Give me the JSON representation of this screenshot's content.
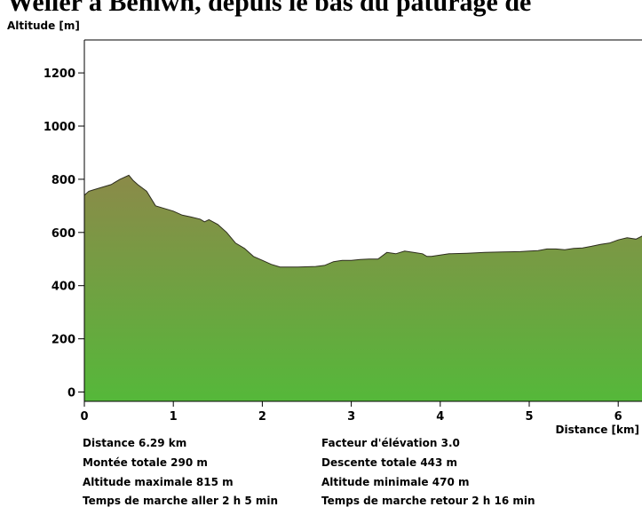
{
  "chart_data": {
    "type": "area",
    "title": "Weiler à Benlwh, depuis le bas du pâturage de",
    "xlabel": "Distance [km]",
    "ylabel": "Altitude [m]",
    "xlim": [
      0,
      6.29
    ],
    "ylim": [
      -30,
      1300
    ],
    "x_ticks": [
      0,
      1,
      2,
      3,
      4,
      5,
      6
    ],
    "y_ticks": [
      0,
      200,
      400,
      600,
      800,
      1000,
      1200
    ],
    "grid": false,
    "colors": {
      "fill_top": "#8b8a49",
      "fill_bottom": "#55b83a",
      "line": "#2d2d1e"
    },
    "x": [
      0,
      0.05,
      0.1,
      0.2,
      0.3,
      0.4,
      0.5,
      0.55,
      0.6,
      0.7,
      0.8,
      0.9,
      1.0,
      1.1,
      1.2,
      1.3,
      1.35,
      1.4,
      1.5,
      1.6,
      1.7,
      1.8,
      1.9,
      2.0,
      2.1,
      2.2,
      2.4,
      2.6,
      2.7,
      2.8,
      2.9,
      3.0,
      3.1,
      3.2,
      3.3,
      3.4,
      3.5,
      3.6,
      3.7,
      3.8,
      3.85,
      3.9,
      4.0,
      4.1,
      4.3,
      4.5,
      4.7,
      4.9,
      5.0,
      5.1,
      5.2,
      5.3,
      5.4,
      5.5,
      5.6,
      5.7,
      5.8,
      5.9,
      6.0,
      6.1,
      6.2,
      6.29
    ],
    "y": [
      740,
      755,
      760,
      770,
      780,
      800,
      815,
      795,
      780,
      755,
      700,
      690,
      680,
      665,
      658,
      650,
      640,
      648,
      630,
      600,
      560,
      540,
      510,
      495,
      480,
      470,
      470,
      472,
      476,
      490,
      495,
      495,
      498,
      500,
      500,
      525,
      520,
      530,
      525,
      520,
      510,
      510,
      515,
      520,
      522,
      525,
      527,
      528,
      530,
      532,
      538,
      538,
      535,
      540,
      542,
      548,
      555,
      560,
      572,
      580,
      575,
      590
    ],
    "stats": [
      "Distance 6.29 km",
      "Facteur d'élévation 3.0",
      "Montée totale  290 m",
      "Descente totale  443 m",
      "Altitude maximale  815 m",
      "Altitude minimale  470 m",
      "Temps de marche aller  2 h 5 min",
      "Temps de marche retour  2 h 16 min"
    ]
  }
}
